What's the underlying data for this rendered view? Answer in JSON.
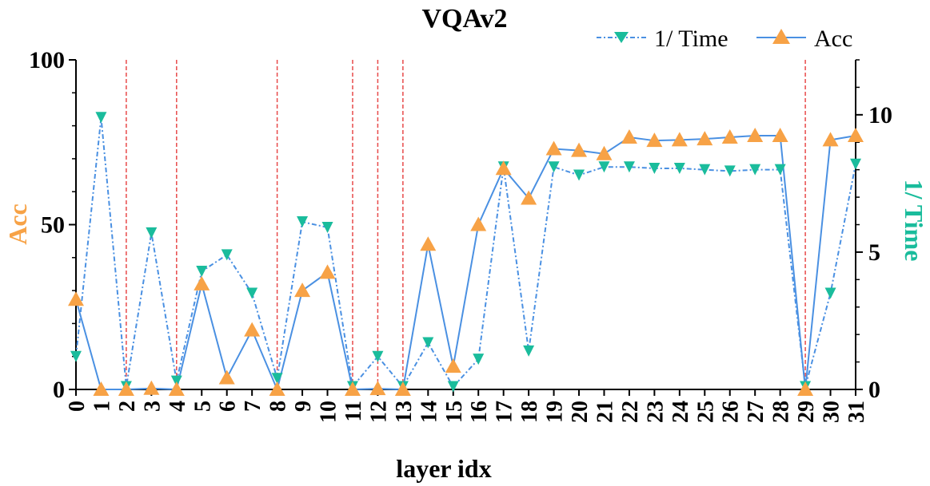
{
  "chart_data": {
    "type": "line",
    "title": "VQAv2",
    "xlabel": "layer idx",
    "ylabel_left": "Acc",
    "ylabel_right": "1/ Time",
    "x": [
      0,
      1,
      2,
      3,
      4,
      5,
      6,
      7,
      8,
      9,
      10,
      11,
      12,
      13,
      14,
      15,
      16,
      17,
      18,
      19,
      20,
      21,
      22,
      23,
      24,
      25,
      26,
      27,
      28,
      29,
      30,
      31
    ],
    "left_ylim": [
      0,
      100
    ],
    "left_yticks": [
      0,
      50,
      100
    ],
    "right_ylim": [
      0,
      12
    ],
    "right_yticks": [
      0,
      5,
      10
    ],
    "series": [
      {
        "name": "Acc",
        "axis": "left",
        "color": "#4a90e2",
        "marker_color": "#f7a246",
        "marker": "triangle-up",
        "line_style": "solid",
        "values": [
          27.3,
          0,
          0,
          0.3,
          0,
          32.0,
          3.5,
          18.0,
          0,
          30.0,
          35.5,
          0,
          0.2,
          0,
          44.0,
          7.0,
          50.0,
          67.0,
          58.0,
          73.0,
          72.5,
          71.5,
          76.5,
          75.5,
          75.7,
          76.0,
          76.5,
          77.0,
          77.0,
          0,
          75.7,
          77.0
        ]
      },
      {
        "name": "1/ Time",
        "axis": "right",
        "color": "#4a90e2",
        "marker_color": "#1abc9c",
        "marker": "triangle-down",
        "line_style": "dash-dot",
        "values": [
          1.2,
          9.9,
          0.1,
          5.7,
          0.3,
          4.3,
          4.9,
          3.5,
          0.4,
          6.1,
          5.9,
          0.1,
          1.2,
          0.1,
          1.7,
          0.1,
          1.1,
          8.1,
          1.4,
          8.1,
          7.8,
          8.1,
          8.1,
          8.05,
          8.05,
          8.0,
          7.95,
          8.0,
          8.0,
          0.1,
          3.5,
          8.2
        ]
      }
    ],
    "vlines": [
      2,
      4,
      8,
      11,
      12,
      13,
      29
    ],
    "vline_color": "#e84a4a",
    "legend_position": "top-right",
    "grid": false
  }
}
